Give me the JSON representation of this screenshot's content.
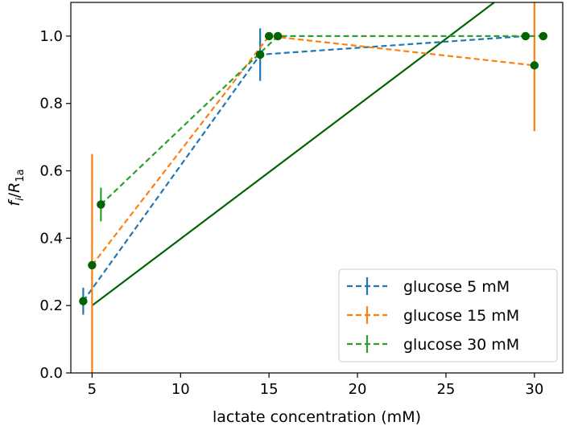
{
  "chart_data": {
    "type": "line",
    "title": "",
    "xlabel": "lactate concentration (mM)",
    "ylabel_main": "f",
    "ylabel_sub1": "i",
    "ylabel_sep": "/",
    "ylabel_main2": "R",
    "ylabel_sub2": "1a",
    "xlim": [
      3.8,
      31.6
    ],
    "ylim": [
      0.0,
      1.1
    ],
    "xticks": [
      5,
      10,
      15,
      20,
      25,
      30
    ],
    "xtick_labels": [
      "5",
      "10",
      "15",
      "20",
      "25",
      "30"
    ],
    "yticks": [
      0.0,
      0.2,
      0.4,
      0.6,
      0.8,
      1.0
    ],
    "ytick_labels": [
      "0.0",
      "0.2",
      "0.4",
      "0.6",
      "0.8",
      "1.0"
    ],
    "grid": false,
    "legend_position": "lower-right",
    "point_color": "#006400",
    "series": [
      {
        "name": "glucose 5 mM",
        "color": "#1f77b4",
        "x": [
          4.5,
          14.5,
          29.5
        ],
        "y": [
          0.213,
          0.945,
          1.0
        ],
        "yerr": [
          0.04,
          0.078,
          0.0
        ]
      },
      {
        "name": "glucose 15 mM",
        "color": "#ff7f0e",
        "x": [
          5.0,
          15.0,
          30.0
        ],
        "y": [
          0.32,
          1.0,
          0.913
        ],
        "yerr": [
          0.33,
          0.0,
          0.195
        ]
      },
      {
        "name": "glucose 30 mM",
        "color": "#2ca02c",
        "x": [
          5.5,
          15.5,
          30.5
        ],
        "y": [
          0.5,
          1.0,
          1.0
        ],
        "yerr": [
          0.05,
          0.0,
          0.0
        ]
      }
    ],
    "fit_line": {
      "color": "#006400",
      "x": [
        5.0,
        25.2
      ],
      "y": [
        0.2,
        1.0
      ],
      "slope": 0.0396
    }
  }
}
